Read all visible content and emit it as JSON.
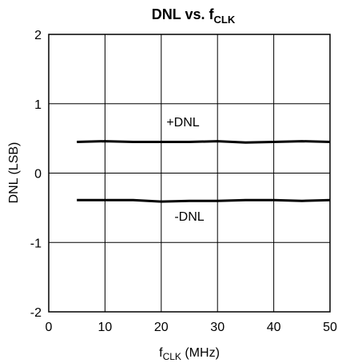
{
  "chart_data": {
    "type": "line",
    "title": {
      "main": "DNL vs. f",
      "sub": "CLK"
    },
    "xlabel": {
      "main": "f",
      "sub": "CLK",
      "rest": " (MHz)"
    },
    "ylabel": "DNL (LSB)",
    "xlim": [
      0,
      50
    ],
    "ylim": [
      -2,
      2
    ],
    "xticks": [
      0,
      10,
      20,
      30,
      40,
      50
    ],
    "yticks": [
      -2,
      -1,
      0,
      1,
      2
    ],
    "grid": true,
    "series": [
      {
        "name": "+DNL",
        "x": [
          5,
          10,
          15,
          20,
          25,
          30,
          35,
          40,
          45,
          50
        ],
        "y": [
          0.45,
          0.46,
          0.45,
          0.45,
          0.45,
          0.46,
          0.44,
          0.45,
          0.46,
          0.45
        ]
      },
      {
        "name": "-DNL",
        "x": [
          5,
          10,
          15,
          20,
          25,
          30,
          35,
          40,
          45,
          50
        ],
        "y": [
          -0.39,
          -0.39,
          -0.39,
          -0.41,
          -0.4,
          -0.4,
          -0.39,
          -0.39,
          -0.4,
          -0.39
        ]
      }
    ],
    "annotations": [
      {
        "text": "+DNL",
        "series": 0
      },
      {
        "text": "-DNL",
        "series": 1
      }
    ]
  }
}
